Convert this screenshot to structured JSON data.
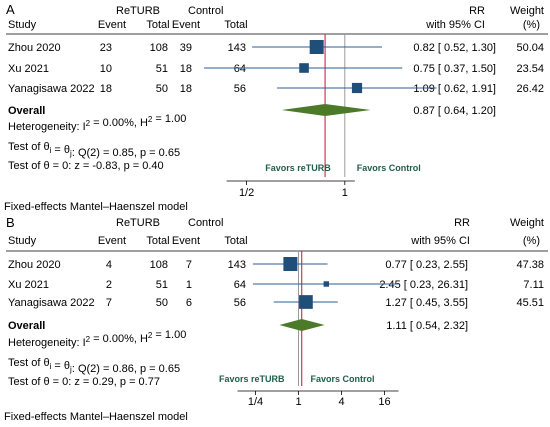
{
  "colors": {
    "square": "#1f4e79",
    "ci_line": "#2b5f94",
    "diamond": "#4c7a28",
    "overall_line": "#c0143c",
    "null_line": "#9a9aa0",
    "favor_text": "#1f5f48"
  },
  "chart_data": [
    {
      "type": "forest",
      "panel": "A",
      "x_scale": "log",
      "null_value": 1,
      "ticks": [
        0.5,
        1
      ],
      "tick_labels": [
        "1/2",
        "1"
      ],
      "headers": {
        "study": "Study",
        "group1": "ReTURB",
        "group2": "Control",
        "event": "Event",
        "total": "Total",
        "effect": "RR",
        "ci": "with 95% CI",
        "weight": "Weight",
        "weight_unit": "(%)"
      },
      "studies": [
        {
          "name": "Zhou 2020",
          "e1": "23",
          "n1": "108",
          "e2": "39",
          "n2": "143",
          "rr": 0.82,
          "lo": 0.52,
          "hi": 1.3,
          "rr_text": "0.82 [ 0.52, 1.30]",
          "weight": 50.04,
          "weight_text": "50.04"
        },
        {
          "name": "Xu 2021",
          "e1": "10",
          "n1": "51",
          "e2": "18",
          "n2": "64",
          "rr": 0.75,
          "lo": 0.37,
          "hi": 1.5,
          "rr_text": "0.75 [ 0.37, 1.50]",
          "weight": 23.54,
          "weight_text": "23.54"
        },
        {
          "name": "Yanagisawa 2022",
          "e1": "18",
          "n1": "50",
          "e2": "18",
          "n2": "56",
          "rr": 1.09,
          "lo": 0.62,
          "hi": 1.91,
          "rr_text": "1.09 [ 0.62, 1.91]",
          "weight": 26.42,
          "weight_text": "26.42"
        }
      ],
      "overall": {
        "label": "Overall",
        "rr": 0.87,
        "lo": 0.64,
        "hi": 1.2,
        "text": "0.87 [ 0.64, 1.20]"
      },
      "heterogeneity": "Heterogeneity: I² = 0.00%, H² = 1.00",
      "test_homogeneity": "Test of θi = θj: Q(2) = 0.85, p = 0.65",
      "test_effect": "Test of θ = 0: z = -0.83, p = 0.40",
      "favors_left": "Favors reTURB",
      "favors_right": "Favors Control",
      "model_note": "Fixed-effects Mantel–Haenszel model"
    },
    {
      "type": "forest",
      "panel": "B",
      "x_scale": "log",
      "null_value": 1,
      "ticks": [
        0.25,
        1,
        4,
        16
      ],
      "tick_labels": [
        "1/4",
        "1",
        "4",
        "16"
      ],
      "headers": {
        "study": "Study",
        "group1": "ReTURB",
        "group2": "Control",
        "event": "Event",
        "total": "Total",
        "effect": "RR",
        "ci": "with 95% CI",
        "weight": "Weight",
        "weight_unit": "(%)"
      },
      "studies": [
        {
          "name": "Zhou 2020",
          "e1": "4",
          "n1": "108",
          "e2": "7",
          "n2": "143",
          "rr": 0.77,
          "lo": 0.23,
          "hi": 2.55,
          "rr_text": "0.77 [ 0.23, 2.55]",
          "weight": 47.38,
          "weight_text": "47.38"
        },
        {
          "name": "Xu 2021",
          "e1": "2",
          "n1": "51",
          "e2": "1",
          "n2": "64",
          "rr": 2.45,
          "lo": 0.23,
          "hi": 26.31,
          "rr_text": "2.45 [ 0.23, 26.31]",
          "weight": 7.11,
          "weight_text": "7.11"
        },
        {
          "name": "Yanagisawa 2022",
          "e1": "7",
          "n1": "50",
          "e2": "6",
          "n2": "56",
          "rr": 1.27,
          "lo": 0.45,
          "hi": 3.55,
          "rr_text": "1.27 [ 0.45, 3.55]",
          "weight": 45.51,
          "weight_text": "45.51"
        }
      ],
      "overall": {
        "label": "Overall",
        "rr": 1.11,
        "lo": 0.54,
        "hi": 2.32,
        "text": "1.11 [ 0.54, 2.32]"
      },
      "heterogeneity": "Heterogeneity: I² = 0.00%, H² = 1.00",
      "test_homogeneity": "Test of θi = θj: Q(2) = 0.86, p = 0.65",
      "test_effect": "Test of θ = 0: z = 0.29, p = 0.77",
      "favors_left": "Favors reTURB",
      "favors_right": "Favors Control",
      "model_note": "Fixed-effects Mantel–Haenszel model"
    }
  ]
}
